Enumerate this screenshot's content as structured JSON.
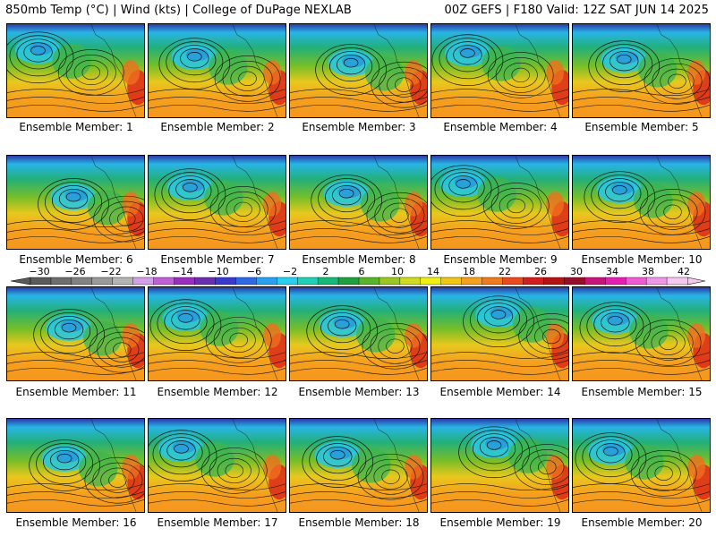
{
  "header": {
    "title": "850mb Temp (°C) | Wind (kts) | College of DuPage NEXLAB",
    "run_info": "00Z GEFS | F180 Valid: 12Z SAT JUN 14 2025"
  },
  "members": [
    {
      "label": "Ensemble Member: 1"
    },
    {
      "label": "Ensemble Member: 2"
    },
    {
      "label": "Ensemble Member: 3"
    },
    {
      "label": "Ensemble Member: 4"
    },
    {
      "label": "Ensemble Member: 5"
    },
    {
      "label": "Ensemble Member: 6"
    },
    {
      "label": "Ensemble Member: 7"
    },
    {
      "label": "Ensemble Member: 8"
    },
    {
      "label": "Ensemble Member: 9"
    },
    {
      "label": "Ensemble Member: 10"
    },
    {
      "label": "Ensemble Member: 11"
    },
    {
      "label": "Ensemble Member: 12"
    },
    {
      "label": "Ensemble Member: 13"
    },
    {
      "label": "Ensemble Member: 14"
    },
    {
      "label": "Ensemble Member: 15"
    },
    {
      "label": "Ensemble Member: 16"
    },
    {
      "label": "Ensemble Member: 17"
    },
    {
      "label": "Ensemble Member: 18"
    },
    {
      "label": "Ensemble Member: 19"
    },
    {
      "label": "Ensemble Member: 20"
    }
  ],
  "colorbar": {
    "ticks": [
      "−30",
      "−26",
      "−22",
      "−18",
      "−14",
      "−10",
      "−6",
      "−2",
      "2",
      "6",
      "10",
      "14",
      "18",
      "22",
      "26",
      "30",
      "34",
      "38",
      "42"
    ],
    "colors": [
      "#5a5a5a",
      "#6e6e6e",
      "#838383",
      "#9a9a9a",
      "#b4b4b4",
      "#d2a0e6",
      "#c060d8",
      "#9a2ec0",
      "#6a2eb0",
      "#3a3ad0",
      "#2e6ae6",
      "#2aa0f0",
      "#28d0f0",
      "#20d0b4",
      "#18b878",
      "#20a040",
      "#5ab428",
      "#9ac820",
      "#d2dc1e",
      "#f0f014",
      "#f0c814",
      "#f5a01e",
      "#f07a1e",
      "#eb4a1e",
      "#d21e1e",
      "#b41414",
      "#960f28",
      "#c8147a",
      "#e61eb4",
      "#f05ad2",
      "#f096e6",
      "#f5c8f0"
    ]
  }
}
